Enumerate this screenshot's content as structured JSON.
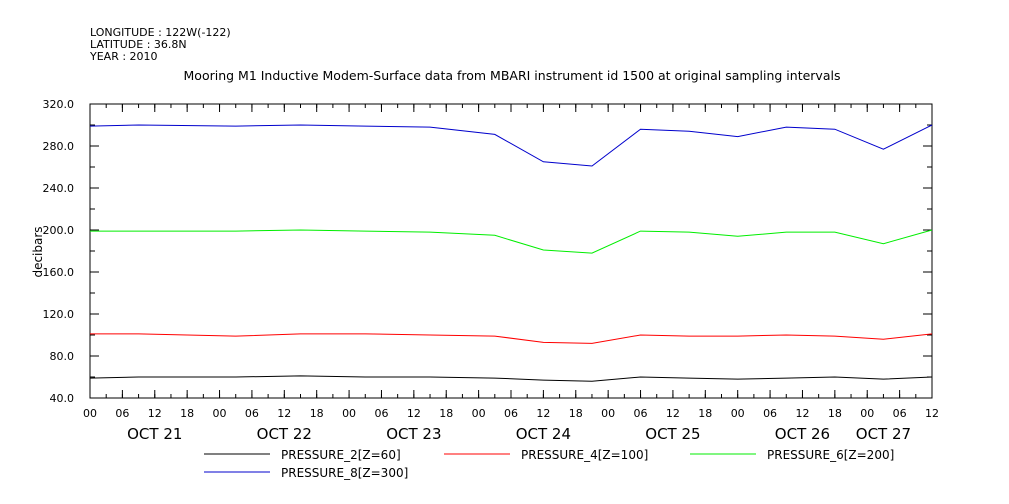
{
  "header": {
    "longitude": "LONGITUDE : 122W(-122)",
    "latitude": "LATITUDE : 36.8N",
    "year": "YEAR : 2010"
  },
  "chart_data": {
    "type": "line",
    "title": "Mooring M1 Inductive Modem-Surface data from MBARI instrument id 1500 at original sampling intervals",
    "xlabel": "",
    "ylabel": "decibars",
    "ylim": [
      40,
      320
    ],
    "yticks": [
      40,
      80,
      120,
      160,
      200,
      240,
      280,
      320
    ],
    "xlim": [
      "2010-10-21T00:00",
      "2010-10-27T12:00"
    ],
    "xticks": [
      {
        "t": "2010-10-21T00:00",
        "label": "00"
      },
      {
        "t": "2010-10-21T06:00",
        "label": "06"
      },
      {
        "t": "2010-10-21T12:00",
        "label": "12"
      },
      {
        "t": "2010-10-21T18:00",
        "label": "18"
      },
      {
        "t": "2010-10-22T00:00",
        "label": "00"
      },
      {
        "t": "2010-10-22T06:00",
        "label": "06"
      },
      {
        "t": "2010-10-22T12:00",
        "label": "12"
      },
      {
        "t": "2010-10-22T18:00",
        "label": "18"
      },
      {
        "t": "2010-10-23T00:00",
        "label": "00"
      },
      {
        "t": "2010-10-23T06:00",
        "label": "06"
      },
      {
        "t": "2010-10-23T12:00",
        "label": "12"
      },
      {
        "t": "2010-10-23T18:00",
        "label": "18"
      },
      {
        "t": "2010-10-24T00:00",
        "label": "00"
      },
      {
        "t": "2010-10-24T06:00",
        "label": "06"
      },
      {
        "t": "2010-10-24T12:00",
        "label": "12"
      },
      {
        "t": "2010-10-24T18:00",
        "label": "18"
      },
      {
        "t": "2010-10-25T00:00",
        "label": "00"
      },
      {
        "t": "2010-10-25T06:00",
        "label": "06"
      },
      {
        "t": "2010-10-25T12:00",
        "label": "12"
      },
      {
        "t": "2010-10-25T18:00",
        "label": "18"
      },
      {
        "t": "2010-10-26T00:00",
        "label": "00"
      },
      {
        "t": "2010-10-26T06:00",
        "label": "06"
      },
      {
        "t": "2010-10-26T12:00",
        "label": "12"
      },
      {
        "t": "2010-10-26T18:00",
        "label": "18"
      },
      {
        "t": "2010-10-27T00:00",
        "label": "00"
      },
      {
        "t": "2010-10-27T06:00",
        "label": "06"
      },
      {
        "t": "2010-10-27T12:00",
        "label": "12"
      }
    ],
    "day_labels": [
      {
        "t": "2010-10-21T12:00",
        "label": "OCT 21"
      },
      {
        "t": "2010-10-22T12:00",
        "label": "OCT 22"
      },
      {
        "t": "2010-10-23T12:00",
        "label": "OCT 23"
      },
      {
        "t": "2010-10-24T12:00",
        "label": "OCT 24"
      },
      {
        "t": "2010-10-25T12:00",
        "label": "OCT 25"
      },
      {
        "t": "2010-10-26T12:00",
        "label": "OCT 26"
      },
      {
        "t": "2010-10-27T03:00",
        "label": "OCT 27"
      }
    ],
    "x": [
      "2010-10-21T00:00",
      "2010-10-21T09:00",
      "2010-10-22T03:00",
      "2010-10-22T15:00",
      "2010-10-23T03:00",
      "2010-10-23T15:00",
      "2010-10-24T03:00",
      "2010-10-24T12:00",
      "2010-10-24T21:00",
      "2010-10-25T06:00",
      "2010-10-25T15:00",
      "2010-10-26T00:00",
      "2010-10-26T09:00",
      "2010-10-26T18:00",
      "2010-10-27T03:00",
      "2010-10-27T12:00"
    ],
    "series": [
      {
        "name": "PRESSURE_2[Z=60]",
        "color": "#000000",
        "values": [
          59,
          60,
          60,
          61,
          60,
          60,
          59,
          57,
          56,
          60,
          59,
          58,
          59,
          60,
          58,
          60
        ]
      },
      {
        "name": "PRESSURE_4[Z=100]",
        "color": "#ff0000",
        "values": [
          101,
          101,
          99,
          101,
          101,
          100,
          99,
          93,
          92,
          100,
          99,
          99,
          100,
          99,
          96,
          101
        ]
      },
      {
        "name": "PRESSURE_6[Z=200]",
        "color": "#00ee00",
        "values": [
          199,
          199,
          199,
          200,
          199,
          198,
          195,
          181,
          178,
          199,
          198,
          194,
          198,
          198,
          187,
          200
        ]
      },
      {
        "name": "PRESSURE_8[Z=300]",
        "color": "#0000cc",
        "values": [
          299,
          300,
          299,
          300,
          299,
          298,
          291,
          265,
          261,
          296,
          294,
          289,
          298,
          296,
          277,
          300
        ]
      }
    ],
    "legend_placement": "bottom",
    "grid": false
  }
}
